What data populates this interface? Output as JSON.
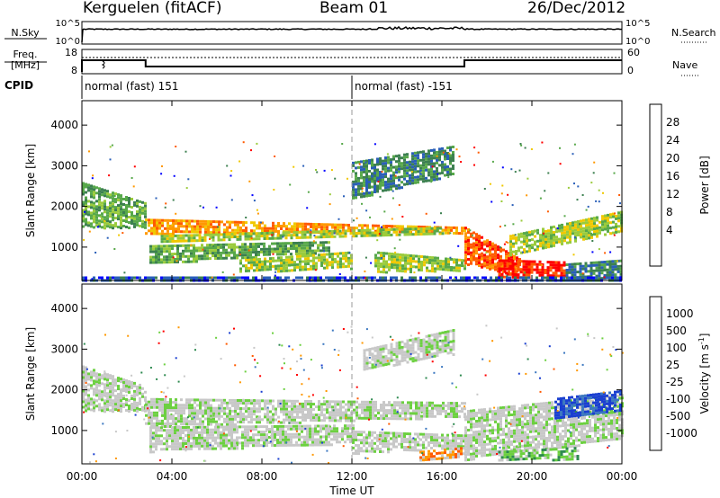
{
  "header": {
    "radar": "Kerguelen (fitACF)",
    "beam": "Beam 01",
    "date": "26/Dec/2012"
  },
  "sky_panel": {
    "left_label": "N.Sky",
    "right_label": "N.Search",
    "ticks": [
      "10^5",
      "10^0"
    ]
  },
  "freq_panel": {
    "left_label_line1": "Freq.",
    "left_label_line2": "[MHz]",
    "left_ticks": [
      "18",
      "8"
    ],
    "right_label": "Nave",
    "right_ticks": [
      "60",
      "0"
    ],
    "freq_steps": [
      {
        "start_h": 0.0,
        "end_h": 2.83,
        "level": "high"
      },
      {
        "start_h": 2.83,
        "end_h": 17.0,
        "level": "low"
      },
      {
        "start_h": 17.0,
        "end_h": 24.0,
        "level": "high"
      }
    ]
  },
  "cpid": {
    "label": "CPID",
    "entries": [
      {
        "text": "normal (fast) 151",
        "start_h": 0
      },
      {
        "text": "normal (fast) -151",
        "start_h": 12
      }
    ]
  },
  "x_axis": {
    "label": "Time UT",
    "ticks": [
      "00:00",
      "04:00",
      "08:00",
      "12:00",
      "16:00",
      "20:00",
      "00:00"
    ]
  },
  "chart_data": [
    {
      "type": "heatmap",
      "name": "power",
      "ylabel": "Slant Range [km]",
      "xlabel": "Time UT",
      "xlim_hours": [
        0,
        24
      ],
      "ylim_km": [
        180,
        4600
      ],
      "yticks": [
        "1000",
        "2000",
        "3000",
        "4000"
      ],
      "colorbar_label": "Power [dB]",
      "colorbar_ticks": [
        "28",
        "24",
        "20",
        "16",
        "12",
        "8",
        "4"
      ],
      "colorbar_colors": [
        "#0000ff",
        "#2a5fb8",
        "#3c8050",
        "#57a84a",
        "#9acb3c",
        "#f0c800",
        "#ff9800",
        "#ff5a00",
        "#ff0000"
      ],
      "regions": [
        {
          "t": [
            0.0,
            2.8
          ],
          "r0": [
            1500,
            1500
          ],
          "r1": [
            2600,
            2100
          ],
          "level": 3
        },
        {
          "t": [
            2.8,
            17.0
          ],
          "r0": [
            1350,
            1350
          ],
          "r1": [
            1700,
            1500
          ],
          "level": 6
        },
        {
          "t": [
            3.5,
            16.0
          ],
          "r0": [
            1150,
            1350
          ],
          "r1": [
            1300,
            1500
          ],
          "level": 4
        },
        {
          "t": [
            3.0,
            11.0
          ],
          "r0": [
            600,
            900
          ],
          "r1": [
            1050,
            1150
          ],
          "level": 3
        },
        {
          "t": [
            7.0,
            12.0
          ],
          "r0": [
            400,
            500
          ],
          "r1": [
            700,
            900
          ],
          "level": 4
        },
        {
          "t": [
            13.0,
            17.0
          ],
          "r0": [
            400,
            450
          ],
          "r1": [
            900,
            700
          ],
          "level": 4
        },
        {
          "t": [
            12.0,
            16.5
          ],
          "r0": [
            2200,
            2800
          ],
          "r1": [
            3100,
            3500
          ],
          "level": 2
        },
        {
          "t": [
            17.0,
            19.5
          ],
          "r0": [
            600,
            300
          ],
          "r1": [
            1500,
            700
          ],
          "level": 7
        },
        {
          "t": [
            18.5,
            21.5
          ],
          "r0": [
            250,
            300
          ],
          "r1": [
            700,
            650
          ],
          "level": 8
        },
        {
          "t": [
            19.0,
            24.0
          ],
          "r0": [
            800,
            1400
          ],
          "r1": [
            1300,
            1900
          ],
          "level": 4
        },
        {
          "t": [
            21.5,
            24.0
          ],
          "r0": [
            250,
            250
          ],
          "r1": [
            600,
            700
          ],
          "level": 2
        },
        {
          "t": [
            0.0,
            24.0
          ],
          "r0": [
            180,
            180
          ],
          "r1": [
            280,
            280
          ],
          "level": 1
        }
      ]
    },
    {
      "type": "heatmap",
      "name": "velocity",
      "ylabel": "Slant Range [km]",
      "xlabel": "Time UT",
      "xlim_hours": [
        0,
        24
      ],
      "ylim_km": [
        180,
        4600
      ],
      "yticks": [
        "1000",
        "2000",
        "3000",
        "4000"
      ],
      "colorbar_label": "Velocity [m s",
      "colorbar_label_sup": "-1",
      "colorbar_label_end": "]",
      "colorbar_ticks": [
        "1000",
        "500",
        "100",
        "25",
        "-25",
        "-100",
        "-500",
        "-1000"
      ],
      "colorbar_colors": [
        "#1a3fd0",
        "#3c78c0",
        "#2e8a50",
        "#6cd040",
        "#c8c8c8",
        "#c8c8c8",
        "#ff9800",
        "#ff5a00",
        "#ff0000"
      ],
      "regions": [
        {
          "t": [
            0.0,
            2.8
          ],
          "r0": [
            1500,
            1500
          ],
          "r1": [
            2600,
            2100
          ],
          "level": 4
        },
        {
          "t": [
            2.8,
            17.0
          ],
          "r0": [
            1100,
            1350
          ],
          "r1": [
            1800,
            1700
          ],
          "level": 4
        },
        {
          "t": [
            3.0,
            12.0
          ],
          "r0": [
            500,
            700
          ],
          "r1": [
            1100,
            1150
          ],
          "level": 4
        },
        {
          "t": [
            12.0,
            17.0
          ],
          "r0": [
            450,
            600
          ],
          "r1": [
            1000,
            900
          ],
          "level": 4
        },
        {
          "t": [
            17.0,
            24.0
          ],
          "r0": [
            300,
            800
          ],
          "r1": [
            1500,
            1900
          ],
          "level": 4
        },
        {
          "t": [
            15.0,
            17.0
          ],
          "r0": [
            300,
            400
          ],
          "r1": [
            500,
            600
          ],
          "level": 6
        },
        {
          "t": [
            21.0,
            24.0
          ],
          "r0": [
            1300,
            1500
          ],
          "r1": [
            1800,
            2000
          ],
          "level": 0
        },
        {
          "t": [
            18.5,
            22.0
          ],
          "r0": [
            300,
            300
          ],
          "r1": [
            500,
            600
          ],
          "level": 3
        },
        {
          "t": [
            12.5,
            16.5
          ],
          "r0": [
            2500,
            2900
          ],
          "r1": [
            3000,
            3500
          ],
          "level": 4
        }
      ]
    }
  ]
}
